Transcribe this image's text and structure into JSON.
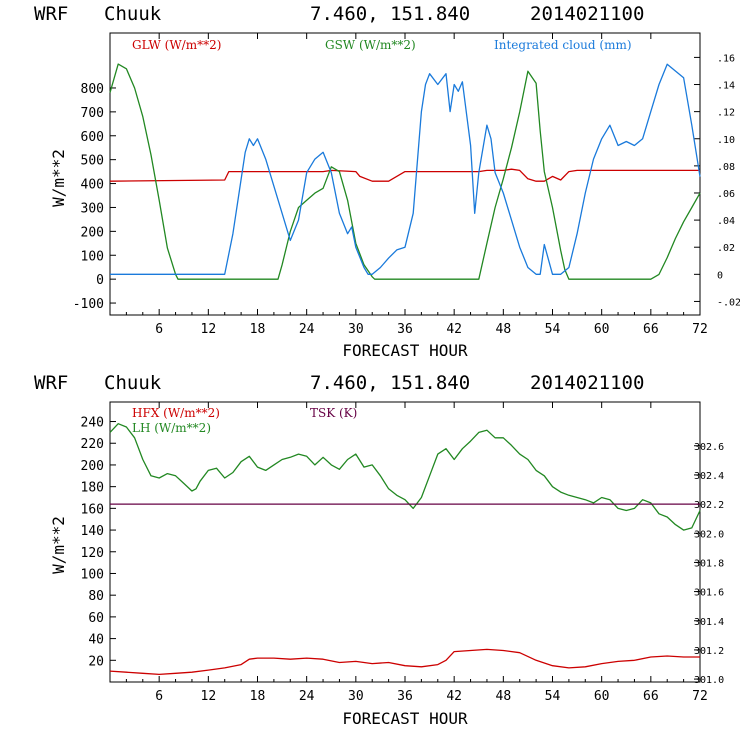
{
  "chart_data": [
    {
      "type": "line",
      "header": {
        "model": "WRF",
        "station": "Chuuk",
        "coords": "7.460, 151.840",
        "init": "2014021100"
      },
      "xlabel": "FORECAST HOUR",
      "ylabel": "W/m**2",
      "xlim": [
        0,
        72
      ],
      "ylim": [
        -150,
        1030
      ],
      "xticks": [
        6,
        12,
        18,
        24,
        30,
        36,
        42,
        48,
        54,
        60,
        66,
        72
      ],
      "yticks": [
        -100,
        0,
        100,
        200,
        300,
        400,
        500,
        600,
        700,
        800
      ],
      "y2lim": [
        -0.03,
        0.178
      ],
      "y2ticks": [
        -0.02,
        0,
        0.02,
        0.04,
        0.06,
        0.08,
        0.1,
        0.12,
        0.14,
        0.16
      ],
      "y2ticklabels": [
        "-.02",
        "0",
        ".02",
        ".04",
        ".06",
        ".08",
        ".10",
        ".12",
        ".14",
        ".16"
      ],
      "series": [
        {
          "name": "GLW (W/m**2)",
          "color": "#cc0000",
          "axis": "left",
          "x": [
            0,
            14,
            14.5,
            26,
            27,
            30,
            30.5,
            32,
            34,
            36,
            45,
            46,
            48,
            49,
            50,
            51,
            52,
            53,
            54,
            55,
            56,
            57,
            62,
            72
          ],
          "y": [
            410,
            415,
            450,
            450,
            455,
            450,
            430,
            410,
            410,
            450,
            450,
            455,
            455,
            460,
            455,
            420,
            410,
            410,
            430,
            415,
            450,
            455,
            455,
            455
          ]
        },
        {
          "name": "GSW (W/m**2)",
          "color": "#228822",
          "axis": "left",
          "x": [
            0,
            1,
            2,
            3,
            4,
            5,
            6,
            7,
            8,
            8.3,
            20.5,
            21,
            22,
            23,
            24,
            25,
            26,
            27,
            28,
            29,
            30,
            31,
            32,
            32.3,
            45,
            46,
            47,
            48,
            49,
            50,
            51,
            52,
            52.5,
            53,
            54,
            55,
            55.5,
            56,
            66,
            67,
            68,
            69,
            70,
            71,
            72
          ],
          "y": [
            780,
            900,
            880,
            800,
            680,
            520,
            330,
            130,
            20,
            0,
            0,
            60,
            200,
            300,
            330,
            360,
            380,
            470,
            450,
            330,
            150,
            60,
            10,
            0,
            0,
            150,
            300,
            420,
            550,
            700,
            870,
            820,
            620,
            450,
            300,
            120,
            40,
            0,
            0,
            20,
            90,
            170,
            240,
            300,
            360
          ]
        },
        {
          "name": "Integrated cloud (mm)",
          "color": "#1a7adb",
          "axis": "right",
          "x": [
            0,
            14,
            15,
            16,
            16.5,
            17,
            17.5,
            18,
            19,
            20,
            21,
            22,
            23,
            24,
            25,
            26,
            27,
            28,
            29,
            29.5,
            30,
            31,
            31.5,
            32,
            33,
            34,
            35,
            36,
            37,
            38,
            38.5,
            39,
            40,
            41,
            41.5,
            42,
            42.5,
            43,
            44,
            44.5,
            45,
            46,
            46.5,
            47,
            48,
            49,
            50,
            51,
            52,
            52.5,
            53,
            54,
            55,
            56,
            57,
            58,
            59,
            60,
            61,
            62,
            63,
            64,
            65,
            66,
            67,
            68,
            69,
            70,
            71,
            72
          ],
          "y": [
            0,
            0,
            0.03,
            0.07,
            0.09,
            0.1,
            0.095,
            0.1,
            0.085,
            0.065,
            0.045,
            0.025,
            0.04,
            0.075,
            0.085,
            0.09,
            0.075,
            0.045,
            0.03,
            0.035,
            0.02,
            0.005,
            0,
            0,
            0.005,
            0.012,
            0.018,
            0.02,
            0.045,
            0.12,
            0.14,
            0.148,
            0.14,
            0.148,
            0.12,
            0.14,
            0.135,
            0.142,
            0.095,
            0.045,
            0.075,
            0.11,
            0.1,
            0.075,
            0.06,
            0.04,
            0.02,
            0.005,
            0,
            0,
            0.022,
            0,
            0,
            0.005,
            0.03,
            0.06,
            0.085,
            0.1,
            0.11,
            0.095,
            0.098,
            0.095,
            0.1,
            0.12,
            0.14,
            0.155,
            0.15,
            0.145,
            0.11,
            0.072
          ]
        }
      ]
    },
    {
      "type": "line",
      "header": {
        "model": "WRF",
        "station": "Chuuk",
        "coords": "7.460, 151.840",
        "init": "2014021100"
      },
      "xlabel": "FORECAST HOUR",
      "ylabel": "W/m**2",
      "xlim": [
        0,
        72
      ],
      "ylim": [
        0,
        258
      ],
      "xticks": [
        6,
        12,
        18,
        24,
        30,
        36,
        42,
        48,
        54,
        60,
        66,
        72
      ],
      "yticks": [
        20,
        40,
        60,
        80,
        100,
        120,
        140,
        160,
        180,
        200,
        220,
        240
      ],
      "y2lim": [
        300.98,
        302.9
      ],
      "y2ticks": [
        301.0,
        301.2,
        301.4,
        301.6,
        301.8,
        302.0,
        302.2,
        302.4,
        302.6
      ],
      "y2ticklabels": [
        "301.0",
        "301.2",
        "301.4",
        "301.6",
        "301.8",
        "302.0",
        "302.2",
        "302.4",
        "302.6"
      ],
      "series": [
        {
          "name": "HFX (W/m**2)",
          "color": "#cc0000",
          "axis": "left",
          "x": [
            0,
            2,
            4,
            6,
            8,
            10,
            12,
            14,
            16,
            17,
            18,
            20,
            22,
            24,
            26,
            28,
            30,
            32,
            34,
            36,
            38,
            40,
            41,
            42,
            44,
            46,
            48,
            50,
            52,
            54,
            56,
            58,
            60,
            62,
            64,
            66,
            68,
            70,
            72
          ],
          "y": [
            10,
            9,
            8,
            7,
            8,
            9,
            11,
            13,
            16,
            21,
            22,
            22,
            21,
            22,
            21,
            18,
            19,
            17,
            18,
            15,
            14,
            16,
            20,
            28,
            29,
            30,
            29,
            27,
            20,
            15,
            13,
            14,
            17,
            19,
            20,
            23,
            24,
            23,
            23
          ]
        },
        {
          "name": "LH (W/m**2)",
          "color": "#228822",
          "axis": "left",
          "x": [
            0,
            1,
            2,
            3,
            4,
            5,
            6,
            7,
            8,
            9,
            10,
            10.5,
            11,
            12,
            13,
            14,
            15,
            16,
            17,
            18,
            19,
            20,
            21,
            22,
            23,
            24,
            25,
            26,
            27,
            28,
            29,
            30,
            31,
            32,
            33,
            34,
            35,
            36,
            37,
            38,
            39,
            40,
            41,
            42,
            43,
            44,
            45,
            46,
            47,
            48,
            49,
            50,
            51,
            52,
            53,
            54,
            55,
            56,
            57,
            58,
            59,
            60,
            61,
            62,
            63,
            64,
            65,
            66,
            67,
            68,
            69,
            70,
            71,
            72
          ],
          "y": [
            230,
            238,
            235,
            225,
            205,
            190,
            188,
            192,
            190,
            183,
            176,
            178,
            185,
            195,
            197,
            188,
            193,
            203,
            208,
            198,
            195,
            200,
            205,
            207,
            210,
            208,
            200,
            207,
            200,
            196,
            205,
            210,
            198,
            200,
            190,
            178,
            172,
            168,
            160,
            170,
            190,
            210,
            215,
            205,
            215,
            222,
            230,
            232,
            225,
            225,
            218,
            210,
            205,
            195,
            190,
            180,
            175,
            172,
            170,
            168,
            165,
            170,
            168,
            160,
            158,
            160,
            168,
            165,
            155,
            152,
            145,
            140,
            142,
            158
          ]
        },
        {
          "name": "TSK (K)",
          "color": "#660044",
          "axis": "right",
          "x": [
            0,
            72
          ],
          "y": [
            302.2,
            302.2
          ]
        }
      ]
    }
  ]
}
